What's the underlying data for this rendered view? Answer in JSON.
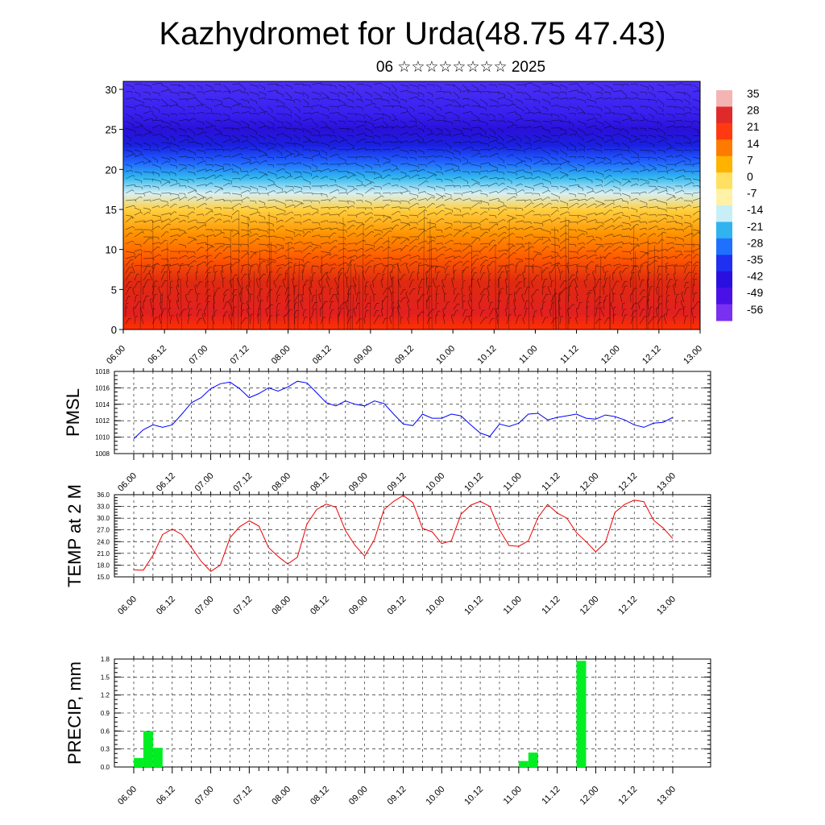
{
  "title": "Kazhydromet for Urda(48.75 47.43)",
  "subtitle": "06 ☆☆☆☆☆☆☆☆ 2025",
  "x_tick_labels": [
    "06.00",
    "06.12",
    "07.00",
    "07.12",
    "08.00",
    "08.12",
    "09.00",
    "09.12",
    "10.00",
    "10.12",
    "11.00",
    "11.12",
    "12.00",
    "12.12",
    "13.00"
  ],
  "chart_data": [
    {
      "type": "heatmap",
      "name": "cross-section",
      "ylim": [
        0,
        31
      ],
      "y_ticks": [
        "0",
        "5",
        "10",
        "15",
        "20",
        "25",
        "30"
      ],
      "colorbar": {
        "labels": [
          "35",
          "28",
          "21",
          "14",
          "7",
          "0",
          "-7",
          "-14",
          "-21",
          "-28",
          "-35",
          "-42",
          "-49",
          "-56"
        ],
        "colors": [
          "#f4b4b4",
          "#e02a2a",
          "#ff3a10",
          "#ff7a00",
          "#ffb200",
          "#ffe060",
          "#fff2a8",
          "#c8eef8",
          "#30b4f0",
          "#2070ff",
          "#2030f0",
          "#2a10e0",
          "#4a10e8",
          "#7a30f0"
        ]
      },
      "gradient": {
        "stops": [
          {
            "level": 0,
            "color": "#ff3000"
          },
          {
            "level": 2,
            "color": "#e22020"
          },
          {
            "level": 6,
            "color": "#e02a10"
          },
          {
            "level": 9,
            "color": "#ff5a00"
          },
          {
            "level": 12,
            "color": "#ff9400"
          },
          {
            "level": 15,
            "color": "#ffd040"
          },
          {
            "level": 17,
            "color": "#d8f0f4"
          },
          {
            "level": 19,
            "color": "#30b8f0"
          },
          {
            "level": 21,
            "color": "#2060ff"
          },
          {
            "level": 23,
            "color": "#1a20e0"
          },
          {
            "level": 25,
            "color": "#2a10d8"
          },
          {
            "level": 27,
            "color": "#3a20f0"
          },
          {
            "level": 31,
            "color": "#4a30f4"
          }
        ],
        "warm_blobs": [
          3.5,
          7.5,
          9.5,
          11.2,
          13.8
        ]
      }
    },
    {
      "type": "line",
      "ylabel": "PMSL",
      "ylim": [
        1008,
        1018
      ],
      "y_ticks": [
        "1008",
        "1010",
        "1012",
        "1014",
        "1016",
        "1018"
      ],
      "series": [
        {
          "color": "#0000ff",
          "values": [
            1009.8,
            1010.9,
            1011.5,
            1011.2,
            1011.5,
            1012.8,
            1014.2,
            1014.8,
            1015.9,
            1016.5,
            1016.7,
            1015.9,
            1014.8,
            1015.3,
            1016.0,
            1015.6,
            1016.1,
            1016.8,
            1016.6,
            1015.4,
            1014.2,
            1013.8,
            1014.4,
            1014.0,
            1013.8,
            1014.4,
            1014.1,
            1012.8,
            1011.6,
            1011.4,
            1012.8,
            1012.3,
            1012.3,
            1012.8,
            1012.6,
            1011.5,
            1010.5,
            1010.1,
            1011.6,
            1011.3,
            1011.7,
            1012.8,
            1012.9,
            1012.1,
            1012.4,
            1012.6,
            1012.8,
            1012.3,
            1012.2,
            1012.7,
            1012.5,
            1012.1,
            1011.5,
            1011.2,
            1011.7,
            1011.8,
            1012.4
          ]
        }
      ]
    },
    {
      "type": "line",
      "ylabel": "TEMP at 2 M",
      "ylim": [
        15,
        36
      ],
      "y_ticks": [
        "15.0",
        "18.0",
        "21.0",
        "24.0",
        "27.0",
        "30.0",
        "33.0",
        "36.0"
      ],
      "series": [
        {
          "color": "#ee0000",
          "values": [
            16.8,
            16.7,
            20.5,
            25.8,
            27.2,
            25.8,
            22.5,
            19.0,
            16.4,
            18.0,
            25.0,
            27.8,
            29.3,
            28.0,
            22.5,
            20.2,
            18.3,
            20.0,
            28.5,
            32.2,
            33.6,
            32.8,
            26.8,
            23.0,
            20.3,
            24.5,
            32.2,
            34.3,
            35.8,
            34.0,
            27.4,
            26.5,
            23.5,
            24.2,
            31.0,
            33.3,
            34.3,
            33.0,
            27.0,
            23.0,
            22.8,
            24.2,
            30.2,
            33.5,
            31.3,
            30.0,
            26.3,
            24.0,
            21.4,
            23.8,
            31.5,
            33.5,
            34.6,
            34.2,
            29.5,
            27.5,
            24.8
          ]
        }
      ]
    },
    {
      "type": "bar",
      "ylabel": "PRECIP, mm",
      "ylim": [
        0,
        1.8
      ],
      "y_ticks": [
        "0.0",
        "0.3",
        "0.6",
        "0.9",
        "1.2",
        "1.5",
        "1.8"
      ],
      "bar_color": "#00ee22",
      "bars": [
        {
          "x": 0.5,
          "value": 0.15
        },
        {
          "x": 1.5,
          "value": 0.6
        },
        {
          "x": 2.5,
          "value": 0.32
        },
        {
          "x": 40.5,
          "value": 0.1
        },
        {
          "x": 41.5,
          "value": 0.24
        },
        {
          "x": 46.5,
          "value": 1.77
        }
      ]
    }
  ]
}
